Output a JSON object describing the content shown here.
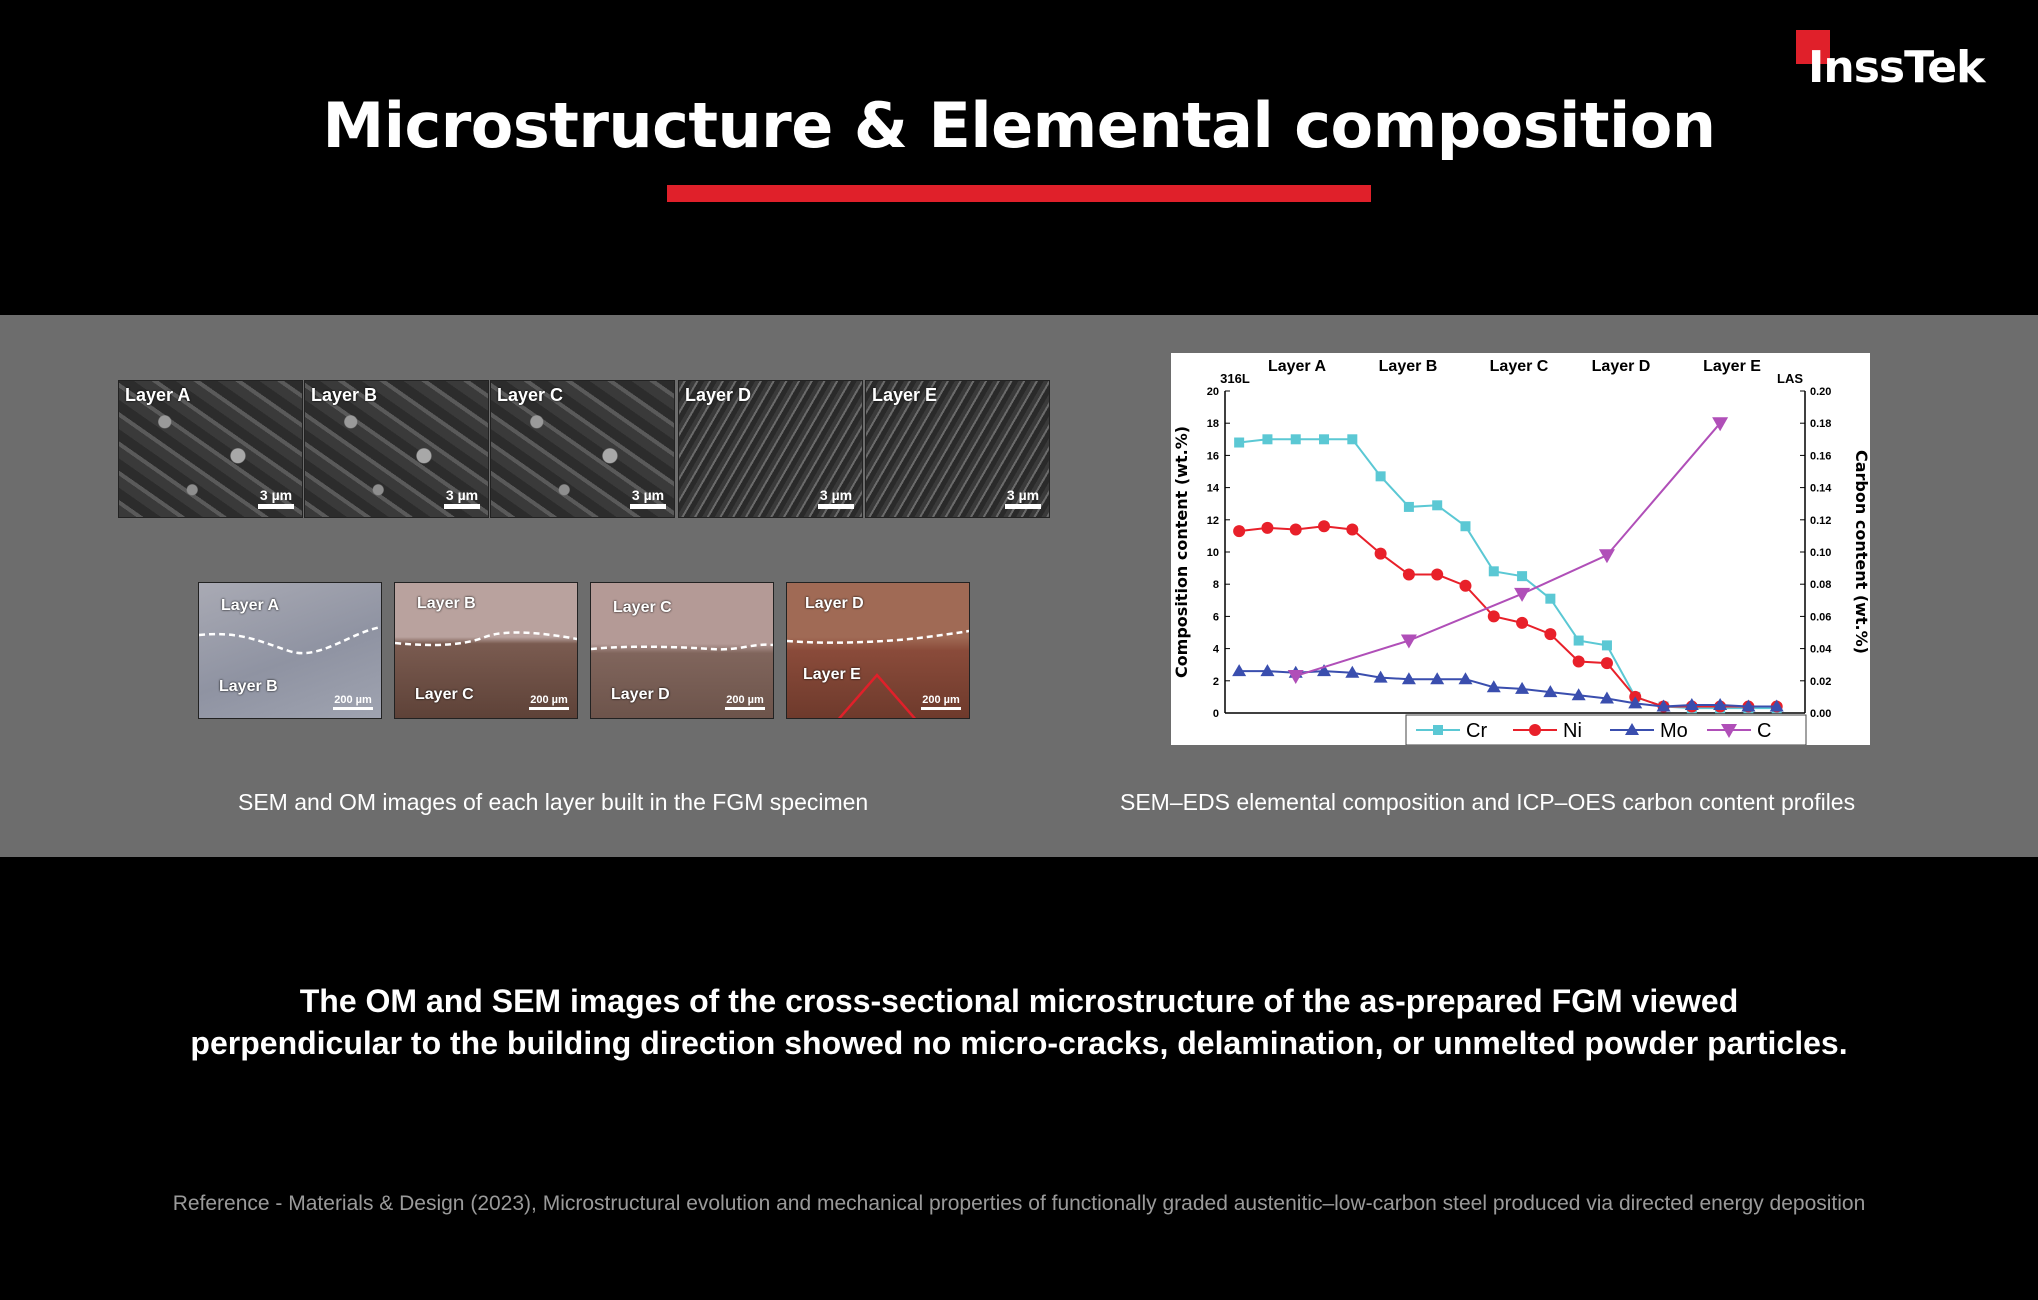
{
  "logo": {
    "text": "InssTek"
  },
  "title": "Microstructure & Elemental composition",
  "sem_panels": [
    {
      "label": "Layer A",
      "scale": "3 µm"
    },
    {
      "label": "Layer B",
      "scale": "3 µm"
    },
    {
      "label": "Layer C",
      "scale": "3 µm"
    },
    {
      "label": "Layer D",
      "scale": "3 µm"
    },
    {
      "label": "Layer E",
      "scale": "3 µm"
    }
  ],
  "om_panels": [
    {
      "top": "Layer A",
      "bottom": "Layer B",
      "scale": "200 µm"
    },
    {
      "top": "Layer B",
      "bottom": "Layer C",
      "scale": "200 µm"
    },
    {
      "top": "Layer C",
      "bottom": "Layer D",
      "scale": "200 µm"
    },
    {
      "top": "Layer D",
      "bottom": "Layer E",
      "scale": "200 µm"
    }
  ],
  "captions": {
    "left": "SEM and OM images of each layer built in the FGM specimen",
    "right": "SEM–EDS elemental composition and ICP–OES carbon content profiles"
  },
  "chart_data": {
    "type": "line",
    "region_labels": [
      "316L",
      "Layer A",
      "Layer B",
      "Layer C",
      "Layer D",
      "Layer E",
      "LAS"
    ],
    "ylabel": "Composition content (wt.%)",
    "y2label": "Carbon content (wt.%)",
    "ylim": [
      0,
      20
    ],
    "y2lim": [
      0,
      0.2
    ],
    "yticks": [
      "0",
      "2",
      "4",
      "6",
      "8",
      "10",
      "12",
      "14",
      "16",
      "18",
      "20"
    ],
    "y2ticks": [
      "0.00",
      "0.02",
      "0.04",
      "0.06",
      "0.08",
      "0.10",
      "0.12",
      "0.14",
      "0.16",
      "0.18",
      "0.20"
    ],
    "x": [
      0,
      1,
      2,
      3,
      4,
      5,
      6,
      7,
      8,
      9,
      10,
      11,
      12,
      13,
      14,
      15,
      16,
      17,
      18,
      19
    ],
    "series": [
      {
        "name": "Cr",
        "color": "#5bc8d4",
        "marker": "square",
        "values": [
          16.8,
          17.0,
          17.0,
          17.0,
          17.0,
          14.7,
          12.8,
          12.9,
          11.6,
          8.8,
          8.5,
          7.1,
          4.5,
          4.2,
          1.0,
          0.4,
          0.3,
          0.3,
          0.3,
          0.3
        ]
      },
      {
        "name": "Ni",
        "color": "#e8202a",
        "marker": "circle",
        "values": [
          11.3,
          11.5,
          11.4,
          11.6,
          11.4,
          9.9,
          8.6,
          8.6,
          7.9,
          6.0,
          5.6,
          4.9,
          3.2,
          3.1,
          1.0,
          0.4,
          0.4,
          0.4,
          0.4,
          0.4
        ]
      },
      {
        "name": "Mo",
        "color": "#3a4eae",
        "marker": "triangle",
        "values": [
          2.6,
          2.6,
          2.5,
          2.6,
          2.5,
          2.2,
          2.1,
          2.1,
          2.1,
          1.6,
          1.5,
          1.3,
          1.1,
          0.9,
          0.6,
          0.4,
          0.5,
          0.5,
          0.4,
          0.4
        ]
      },
      {
        "name": "C",
        "color": "#b04fb8",
        "marker": "triangle-down",
        "axis": "right",
        "x": [
          2,
          6,
          10,
          13,
          17
        ],
        "values": [
          0.023,
          0.045,
          0.074,
          0.098,
          0.18
        ]
      }
    ],
    "legend_position": "bottom-right"
  },
  "body_text_lines": [
    "The OM and SEM images of the cross-sectional microstructure of the as-prepared FGM viewed",
    "perpendicular to the building direction showed no micro-cracks, delamination, or unmelted powder particles."
  ],
  "reference": "Reference - Materials & Design (2023), Microstructural evolution and mechanical properties of functionally graded austenitic–low-carbon steel produced via directed energy deposition"
}
